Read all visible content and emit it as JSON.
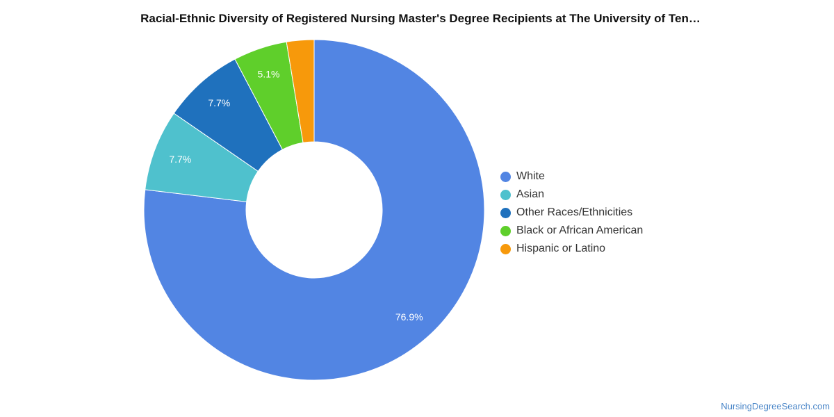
{
  "chart_data": {
    "type": "pie",
    "donut": true,
    "title": "Racial-Ethnic Diversity of Registered Nursing Master's Degree Recipients at The University of Ten…",
    "slices": [
      {
        "label": "White",
        "value": 76.9,
        "display": "76.9%",
        "color": "#5285e3"
      },
      {
        "label": "Asian",
        "value": 7.7,
        "display": "7.7%",
        "color": "#4fc1cd"
      },
      {
        "label": "Other Races/Ethnicities",
        "value": 7.7,
        "display": "7.7%",
        "color": "#1f71bd"
      },
      {
        "label": "Black or African American",
        "value": 5.1,
        "display": "5.1%",
        "color": "#5fcf2b"
      },
      {
        "label": "Hispanic or Latino",
        "value": 2.6,
        "display": "",
        "color": "#f7990b"
      }
    ],
    "legend_position": "right"
  },
  "footer": {
    "source": "NursingDegreeSearch.com"
  }
}
